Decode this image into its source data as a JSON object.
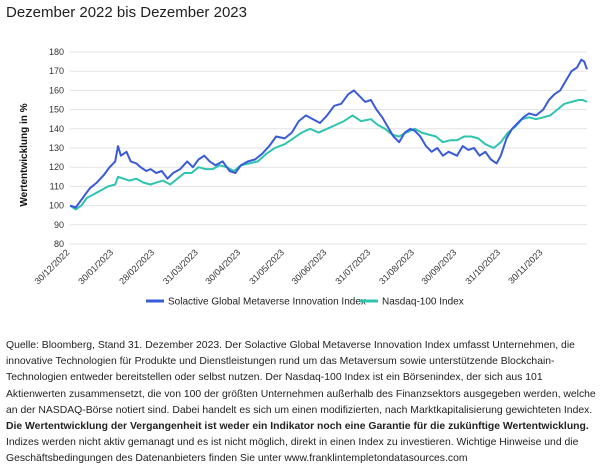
{
  "title": "Dezember 2022 bis Dezember 2023",
  "chart_data": {
    "type": "line",
    "ylabel": "Wertentwicklung in %",
    "xlabel": "",
    "ylim": [
      80,
      180
    ],
    "yticks": [
      80,
      90,
      100,
      110,
      120,
      130,
      140,
      150,
      160,
      170,
      180
    ],
    "xlim": [
      "30/12/2022",
      "31/12/2023"
    ],
    "xticks": [
      "30/12/2022",
      "30/01/2023",
      "28/02/2023",
      "31/03/2023",
      "30/04/2023",
      "31/05/2023",
      "30/06/2023",
      "31/07/2023",
      "31/08/2023",
      "30/09/2023",
      "31/10/2023",
      "30/11/2023"
    ],
    "grid": true,
    "legend_position": "bottom",
    "series": [
      {
        "name": "Solactive Global Metaverse Innovation Index",
        "color": "#3a5bd9",
        "points": [
          [
            "30/12/2022",
            100
          ],
          [
            "03/01/2023",
            99
          ],
          [
            "06/01/2023",
            102
          ],
          [
            "10/01/2023",
            106
          ],
          [
            "13/01/2023",
            109
          ],
          [
            "18/01/2023",
            112
          ],
          [
            "23/01/2023",
            116
          ],
          [
            "27/01/2023",
            120
          ],
          [
            "31/01/2023",
            123
          ],
          [
            "02/02/2023",
            131
          ],
          [
            "04/02/2023",
            126
          ],
          [
            "08/02/2023",
            128
          ],
          [
            "11/02/2023",
            123
          ],
          [
            "15/02/2023",
            122
          ],
          [
            "18/02/2023",
            120
          ],
          [
            "22/02/2023",
            118
          ],
          [
            "25/02/2023",
            119
          ],
          [
            "01/03/2023",
            117
          ],
          [
            "05/03/2023",
            118
          ],
          [
            "09/03/2023",
            114
          ],
          [
            "13/03/2023",
            117
          ],
          [
            "18/03/2023",
            119
          ],
          [
            "23/03/2023",
            123
          ],
          [
            "27/03/2023",
            120
          ],
          [
            "31/03/2023",
            124
          ],
          [
            "04/04/2023",
            126
          ],
          [
            "08/04/2023",
            123
          ],
          [
            "12/04/2023",
            121
          ],
          [
            "17/04/2023",
            123
          ],
          [
            "22/04/2023",
            118
          ],
          [
            "26/04/2023",
            117
          ],
          [
            "30/04/2023",
            121
          ],
          [
            "05/05/2023",
            123
          ],
          [
            "10/05/2023",
            124
          ],
          [
            "15/05/2023",
            127
          ],
          [
            "20/05/2023",
            131
          ],
          [
            "25/05/2023",
            136
          ],
          [
            "31/05/2023",
            135
          ],
          [
            "05/06/2023",
            138
          ],
          [
            "10/06/2023",
            144
          ],
          [
            "15/06/2023",
            147
          ],
          [
            "20/06/2023",
            145
          ],
          [
            "25/06/2023",
            143
          ],
          [
            "30/06/2023",
            147
          ],
          [
            "05/07/2023",
            152
          ],
          [
            "10/07/2023",
            153
          ],
          [
            "15/07/2023",
            158
          ],
          [
            "19/07/2023",
            160
          ],
          [
            "23/07/2023",
            157
          ],
          [
            "27/07/2023",
            154
          ],
          [
            "31/07/2023",
            155
          ],
          [
            "04/08/2023",
            150
          ],
          [
            "08/08/2023",
            146
          ],
          [
            "12/08/2023",
            141
          ],
          [
            "16/08/2023",
            136
          ],
          [
            "20/08/2023",
            133
          ],
          [
            "24/08/2023",
            138
          ],
          [
            "28/08/2023",
            140
          ],
          [
            "31/08/2023",
            139
          ],
          [
            "04/09/2023",
            136
          ],
          [
            "08/09/2023",
            131
          ],
          [
            "12/09/2023",
            128
          ],
          [
            "16/09/2023",
            130
          ],
          [
            "20/09/2023",
            126
          ],
          [
            "24/09/2023",
            128
          ],
          [
            "30/09/2023",
            126
          ],
          [
            "04/10/2023",
            131
          ],
          [
            "08/10/2023",
            129
          ],
          [
            "12/10/2023",
            130
          ],
          [
            "16/10/2023",
            126
          ],
          [
            "20/10/2023",
            128
          ],
          [
            "24/10/2023",
            124
          ],
          [
            "28/10/2023",
            122
          ],
          [
            "31/10/2023",
            126
          ],
          [
            "04/11/2023",
            135
          ],
          [
            "08/11/2023",
            140
          ],
          [
            "12/11/2023",
            143
          ],
          [
            "16/11/2023",
            146
          ],
          [
            "20/11/2023",
            148
          ],
          [
            "25/11/2023",
            147
          ],
          [
            "30/11/2023",
            150
          ],
          [
            "04/12/2023",
            155
          ],
          [
            "08/12/2023",
            158
          ],
          [
            "12/12/2023",
            160
          ],
          [
            "16/12/2023",
            165
          ],
          [
            "20/12/2023",
            170
          ],
          [
            "24/12/2023",
            172
          ],
          [
            "27/12/2023",
            176
          ],
          [
            "29/12/2023",
            175
          ],
          [
            "31/12/2023",
            171
          ]
        ]
      },
      {
        "name": "Nasdaq-100 Index",
        "color": "#2ec4b0",
        "points": [
          [
            "30/12/2022",
            100
          ],
          [
            "03/01/2023",
            98
          ],
          [
            "07/01/2023",
            100
          ],
          [
            "11/01/2023",
            104
          ],
          [
            "16/01/2023",
            106
          ],
          [
            "21/01/2023",
            108
          ],
          [
            "26/01/2023",
            110
          ],
          [
            "31/01/2023",
            111
          ],
          [
            "02/02/2023",
            115
          ],
          [
            "06/02/2023",
            114
          ],
          [
            "10/02/2023",
            113
          ],
          [
            "15/02/2023",
            114
          ],
          [
            "20/02/2023",
            112
          ],
          [
            "25/02/2023",
            111
          ],
          [
            "01/03/2023",
            112
          ],
          [
            "06/03/2023",
            113
          ],
          [
            "11/03/2023",
            111
          ],
          [
            "16/03/2023",
            114
          ],
          [
            "21/03/2023",
            117
          ],
          [
            "26/03/2023",
            117
          ],
          [
            "31/03/2023",
            120
          ],
          [
            "05/04/2023",
            119
          ],
          [
            "10/04/2023",
            119
          ],
          [
            "15/04/2023",
            121
          ],
          [
            "20/04/2023",
            120
          ],
          [
            "25/04/2023",
            118
          ],
          [
            "30/04/2023",
            121
          ],
          [
            "06/05/2023",
            122
          ],
          [
            "12/05/2023",
            123
          ],
          [
            "18/05/2023",
            127
          ],
          [
            "24/05/2023",
            130
          ],
          [
            "31/05/2023",
            132
          ],
          [
            "06/06/2023",
            135
          ],
          [
            "12/06/2023",
            138
          ],
          [
            "18/06/2023",
            140
          ],
          [
            "24/06/2023",
            138
          ],
          [
            "30/06/2023",
            140
          ],
          [
            "06/07/2023",
            142
          ],
          [
            "12/07/2023",
            144
          ],
          [
            "18/07/2023",
            147
          ],
          [
            "24/07/2023",
            144
          ],
          [
            "31/07/2023",
            145
          ],
          [
            "05/08/2023",
            142
          ],
          [
            "10/08/2023",
            140
          ],
          [
            "15/08/2023",
            137
          ],
          [
            "20/08/2023",
            136
          ],
          [
            "25/08/2023",
            138
          ],
          [
            "31/08/2023",
            140
          ],
          [
            "05/09/2023",
            138
          ],
          [
            "10/09/2023",
            137
          ],
          [
            "15/09/2023",
            136
          ],
          [
            "20/09/2023",
            133
          ],
          [
            "25/09/2023",
            134
          ],
          [
            "30/09/2023",
            134
          ],
          [
            "05/10/2023",
            136
          ],
          [
            "10/10/2023",
            136
          ],
          [
            "15/10/2023",
            135
          ],
          [
            "20/10/2023",
            132
          ],
          [
            "26/10/2023",
            130
          ],
          [
            "31/10/2023",
            133
          ],
          [
            "05/11/2023",
            138
          ],
          [
            "10/11/2023",
            141
          ],
          [
            "15/11/2023",
            145
          ],
          [
            "20/11/2023",
            146
          ],
          [
            "25/11/2023",
            145
          ],
          [
            "30/11/2023",
            146
          ],
          [
            "05/12/2023",
            147
          ],
          [
            "10/12/2023",
            150
          ],
          [
            "15/12/2023",
            153
          ],
          [
            "20/12/2023",
            154
          ],
          [
            "25/12/2023",
            155
          ],
          [
            "28/12/2023",
            155
          ],
          [
            "31/12/2023",
            154
          ]
        ]
      }
    ]
  },
  "footnote": {
    "intro": "Quelle: Bloomberg, Stand 31. Dezember 2023. Der Solactive Global Metaverse Innovation Index umfasst Unternehmen, die innovative Technologien für Produkte und Dienstleistungen rund um das Metaversum sowie unterstützende Blockchain-Technologien entweder bereitstellen oder selbst nutzen. Der Nasdaq-100 Index ist ein Börsenindex, der sich aus 101 Aktienwerten zusammensetzt, die von 100 der größten Unternehmen außerhalb des Finanzsektors ausgegeben werden, welche an der NASDAQ-Börse notiert sind. Dabei handelt es sich um einen modifizierten, nach Marktkapitalisierung gewichteten Index. ",
    "bold": "Die Wertentwicklung der Vergangenheit ist weder ein Indikator noch eine Garantie für die zukünftige Wertentwicklung.",
    "outro": " Indizes werden nicht aktiv gemanagt und es ist nicht möglich, direkt in einen Index zu investieren. Wichtige Hinweise und die Geschäftsbedingungen des Datenanbieters finden Sie unter www.franklintempletondatasources.com"
  }
}
